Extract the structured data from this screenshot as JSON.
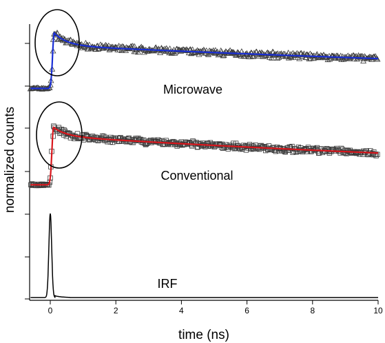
{
  "chart_data": {
    "type": "line",
    "title": "",
    "xlabel": "time (ns)",
    "ylabel": "normalized counts",
    "xlim": [
      -0.6,
      10
    ],
    "x_ticks": [
      0,
      2,
      4,
      6,
      8,
      10
    ],
    "y_ticks_shown": false,
    "grid": false,
    "legend": "none",
    "annotations": [
      "Microwave",
      "Conventional",
      "IRF"
    ],
    "series": [
      {
        "name": "Microwave",
        "marker": "triangle-open",
        "fit_color": "#1a2fd6",
        "baseline": 0.02,
        "peak_time": 0.12,
        "peak": 1.0,
        "fast_component": {
          "amplitude": 0.22,
          "tau_ns": 0.4
        },
        "slow_component": {
          "amplitude": 0.78,
          "tau_ns": 28
        }
      },
      {
        "name": "Conventional",
        "marker": "square-open",
        "fit_color": "#d9161c",
        "baseline": 0.02,
        "peak_time": 0.1,
        "peak": 1.0,
        "fast_component": {
          "amplitude": 0.15,
          "tau_ns": 0.4
        },
        "slow_component": {
          "amplitude": 0.85,
          "tau_ns": 24
        }
      },
      {
        "name": "IRF",
        "marker": "none",
        "fit_color": "#000000",
        "peak_time": 0.0,
        "peak": 1.0,
        "fwhm_ns": 0.1
      }
    ],
    "highlight": "ellipses around the rise and peak region of the Microwave and Conventional decays"
  }
}
